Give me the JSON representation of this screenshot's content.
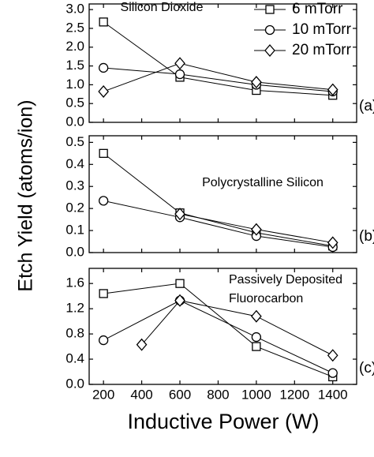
{
  "chart_data": [
    {
      "type": "line",
      "annotation": [
        "Silicon Dioxide"
      ],
      "panel_label": "(a)",
      "ylim": [
        0,
        3.15
      ],
      "yticks": [
        {
          "value": 0,
          "label": "0.0"
        },
        0.5,
        {
          "value": 1,
          "label": "1.0"
        },
        1.5,
        {
          "value": 2,
          "label": "2.0"
        },
        2.5,
        {
          "value": 3,
          "label": "3.0"
        }
      ],
      "series": [
        {
          "name": "6 mTorr",
          "marker": "square",
          "color": "#000000",
          "x": [
            200,
            600,
            1000,
            1400
          ],
          "values": [
            2.67,
            1.2,
            0.85,
            0.72
          ]
        },
        {
          "name": "10 mTorr",
          "marker": "circle",
          "color": "#000000",
          "x": [
            200,
            600,
            1000,
            1400
          ],
          "values": [
            1.45,
            1.28,
            1.0,
            0.82
          ]
        },
        {
          "name": "20 mTorr",
          "marker": "diamond",
          "color": "#000000",
          "x": [
            200,
            600,
            1000,
            1400
          ],
          "values": [
            0.82,
            1.57,
            1.07,
            0.87
          ]
        }
      ]
    },
    {
      "type": "line",
      "annotation": [
        "Polycrystalline Silicon"
      ],
      "panel_label": "(b)",
      "y_label": "Etch Yield (atoms/ion)",
      "ylim": [
        0,
        0.53
      ],
      "yticks": [
        {
          "value": 0,
          "label": "0.0"
        },
        0.1,
        0.2,
        0.3,
        0.4,
        0.5
      ],
      "series": [
        {
          "marker": "square",
          "color": "#000000",
          "x": [
            200,
            600,
            1000,
            1400
          ],
          "values": [
            0.45,
            0.18,
            0.09,
            0.03
          ]
        },
        {
          "marker": "circle",
          "color": "#000000",
          "x": [
            200,
            600,
            1000,
            1400
          ],
          "values": [
            0.235,
            0.16,
            0.075,
            0.025
          ]
        },
        {
          "marker": "diamond",
          "color": "#000000",
          "x": [
            600,
            1000,
            1400
          ],
          "values": [
            0.175,
            0.105,
            0.045
          ]
        }
      ]
    },
    {
      "type": "line",
      "annotation": [
        "Passively Deposited",
        "Fluorocarbon"
      ],
      "panel_label": "(c)",
      "x_label": "Inductive Power (W)",
      "xlim": [
        125,
        1525
      ],
      "xticks": [
        200,
        400,
        600,
        800,
        1000,
        1200,
        1400
      ],
      "ylim": [
        0,
        1.84
      ],
      "yticks": [
        {
          "value": 0,
          "label": "0.0"
        },
        0.4,
        0.8,
        1.2,
        1.6
      ],
      "series": [
        {
          "marker": "square",
          "color": "#000000",
          "x": [
            200,
            600,
            1000,
            1400
          ],
          "values": [
            1.44,
            1.6,
            0.6,
            0.12
          ]
        },
        {
          "marker": "circle",
          "color": "#000000",
          "x": [
            200,
            600,
            1000,
            1400
          ],
          "values": [
            0.7,
            1.33,
            0.75,
            0.18
          ]
        },
        {
          "marker": "diamond",
          "color": "#000000",
          "x": [
            400,
            600,
            1000,
            1400
          ],
          "values": [
            0.63,
            1.33,
            1.08,
            0.46
          ]
        }
      ]
    }
  ]
}
